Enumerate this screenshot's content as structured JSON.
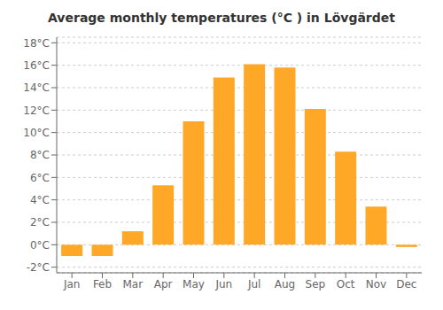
{
  "chart_data": {
    "type": "bar",
    "title": "Average monthly temperatures (°C ) in Lövgärdet",
    "categories": [
      "Jan",
      "Feb",
      "Mar",
      "Apr",
      "May",
      "Jun",
      "Jul",
      "Aug",
      "Sep",
      "Oct",
      "Nov",
      "Dec"
    ],
    "values": [
      -1.0,
      -1.0,
      1.2,
      5.3,
      11.0,
      14.9,
      16.1,
      15.8,
      12.1,
      8.3,
      3.4,
      -0.2
    ],
    "color": "#FFA726",
    "ylim": [
      -2.5,
      18.5
    ],
    "yticks": [
      {
        "value": -2,
        "label": "-2°C"
      },
      {
        "value": 0,
        "label": "0°C"
      },
      {
        "value": 2,
        "label": "2°C"
      },
      {
        "value": 4,
        "label": "4°C"
      },
      {
        "value": 6,
        "label": "6°C"
      },
      {
        "value": 8,
        "label": "8°C"
      },
      {
        "value": 10,
        "label": "10°C"
      },
      {
        "value": 12,
        "label": "12°C"
      },
      {
        "value": 14,
        "label": "14°C"
      },
      {
        "value": 16,
        "label": "16°C"
      },
      {
        "value": 18,
        "label": "18°C"
      }
    ],
    "grid": true
  }
}
